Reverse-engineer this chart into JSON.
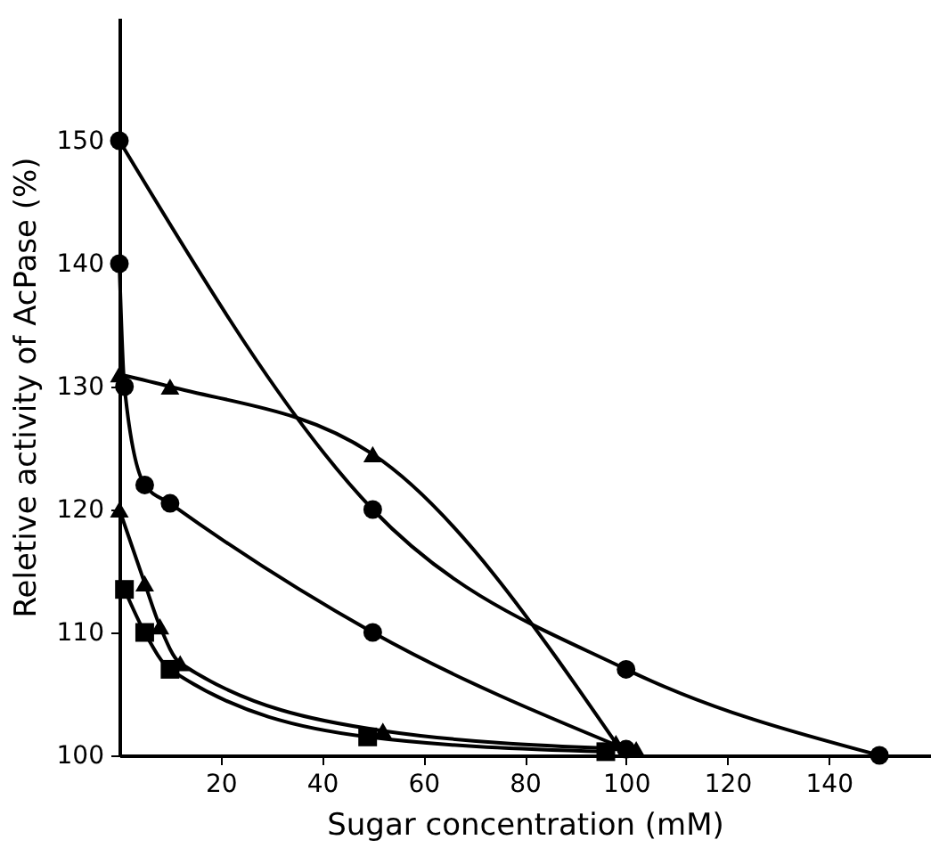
{
  "chart_data": {
    "type": "line",
    "xlabel": "Sugar concentration (mM)",
    "ylabel": "Reletive activity of AcPase (%)",
    "xlim": [
      0,
      160
    ],
    "ylim": [
      100,
      160
    ],
    "xticks": [
      20,
      40,
      60,
      80,
      100,
      120,
      140
    ],
    "yticks": [
      100,
      110,
      120,
      130,
      140,
      150
    ],
    "grid": false,
    "line_style": "solid",
    "series": [
      {
        "color": "#000000",
        "marker": "circle",
        "x": [
          0,
          50,
          100,
          150
        ],
        "values": [
          150,
          120,
          107,
          100
        ]
      },
      {
        "color": "#000000",
        "marker": "circle",
        "x": [
          0,
          1,
          5,
          10,
          50,
          100
        ],
        "values": [
          140,
          130,
          122,
          120.5,
          110,
          100.5
        ]
      },
      {
        "color": "#000000",
        "marker": "triangle",
        "x": [
          0,
          10,
          50,
          98
        ],
        "values": [
          131,
          130,
          124.5,
          101
        ]
      },
      {
        "color": "#000000",
        "marker": "triangle",
        "x": [
          0,
          5,
          8,
          12,
          52,
          102
        ],
        "values": [
          120,
          114,
          110.5,
          107.5,
          102,
          100.5
        ]
      },
      {
        "color": "#000000",
        "marker": "square",
        "x": [
          1,
          5,
          10,
          49,
          96
        ],
        "values": [
          113.5,
          110,
          107,
          101.5,
          100.3
        ]
      }
    ]
  }
}
